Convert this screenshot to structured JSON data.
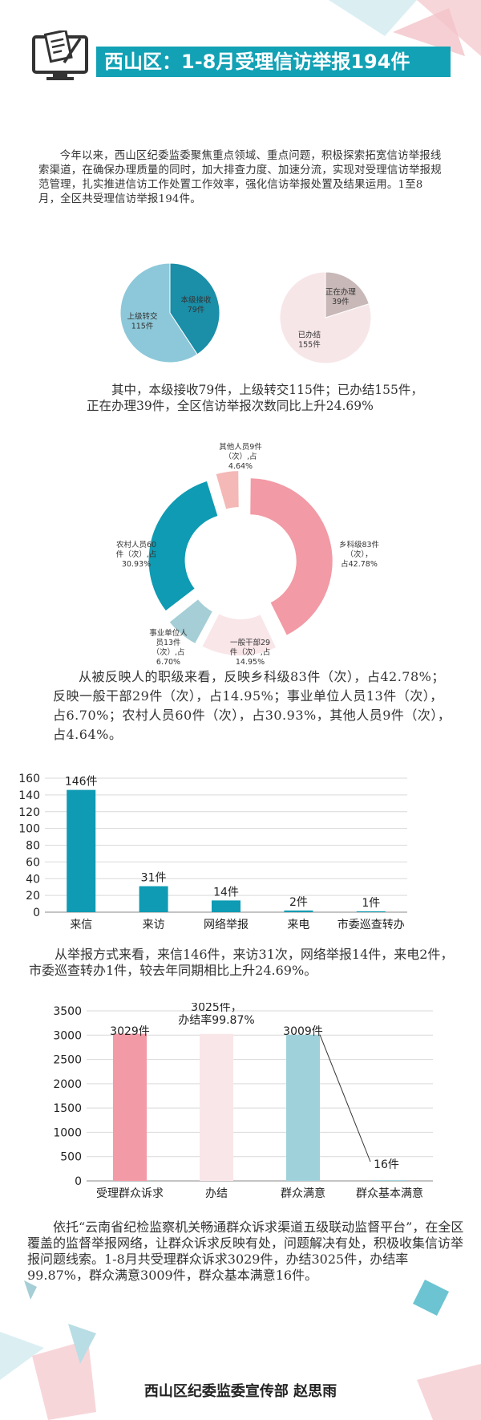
{
  "header": {
    "title": "西山区：1-8月受理信访举报194件",
    "icon": "computer-document-icon",
    "accent": "#12a1b5"
  },
  "paragraphs": {
    "intro": "今年以来，西山区纪委监委聚焦重点领域、重点问题，积极探索拓宽信访举报线索渠道，在确保办理质量的同时，加大排查力度、加速分流，实现对受理信访举报规范管理，扎实推进信访工作处置工作效率，强化信访举报处置及结果运用。1至8月，全区共受理信访举报194件。",
    "pies_summary": "其中，本级接收79件，上级转交115件；已办结155件，正在办理39件，全区信访举报次数同比上升24.69%",
    "level_summary": "从被反映人的职级来看，反映乡科级83件（次），占42.78%；反映一般干部29件（次），占14.95%；事业单位人员13件（次），占6.70%；农村人员60件（次），占30.93%，其他人员9件（次），占4.64%。",
    "method_summary": "从举报方式来看，来信146件，来访31次，网络举报14件，来电2件，市委巡查转办1件，较去年同期相比上升24.69%。",
    "petition_summary": "依托“云南省纪检监察机关畅通群众诉求渠道五级联动监督平台”，在全区覆盖的监督举报网络，让群众诉求反映有处，问题解决有处，积极收集信访举报问题线索。1-8月共受理群众诉求3029件，办结3025件，办结率99.87%，群众满意3009件，群众基本满意16件。"
  },
  "footer": {
    "credit": "西山区纪委监委宣传部  赵思雨"
  },
  "chart_data": [
    {
      "type": "pie",
      "slices": [
        {
          "label": "本级接收",
          "value": 79,
          "text": "79件",
          "color": "#1b8ea8"
        },
        {
          "label": "上级转交",
          "value": 115,
          "text": "115件",
          "color": "#8cc8d9"
        }
      ]
    },
    {
      "type": "pie",
      "slices": [
        {
          "label": "正在办理",
          "value": 39,
          "text": "39件",
          "color": "#c9b8b8"
        },
        {
          "label": "已办结",
          "value": 155,
          "text": "155件",
          "color": "#f7e6e8"
        }
      ]
    },
    {
      "type": "donut",
      "slices": [
        {
          "lines": [
            "乡科级83件",
            "（次），",
            "占42.78%"
          ],
          "value": 83,
          "color": "#f29aa5"
        },
        {
          "lines": [
            "一般干部29",
            "件（次）,占",
            "14.95%"
          ],
          "value": 29,
          "color": "#f9e6e9"
        },
        {
          "lines": [
            "事业单位人",
            "员13件",
            "（次）,占",
            "6.70%"
          ],
          "value": 13,
          "color": "#a5ced6"
        },
        {
          "lines": [
            "农村人员60",
            "件（次）,占",
            "30.93%"
          ],
          "value": 60,
          "color": "#0e9bb3"
        },
        {
          "lines": [
            "其他人员9件",
            "（次）,占",
            "4.64%"
          ],
          "value": 9,
          "color": "#f4b8b6"
        }
      ]
    },
    {
      "type": "bar",
      "categories": [
        "来信",
        "来访",
        "网络举报",
        "来电",
        "市委巡查转办"
      ],
      "values": [
        146,
        31,
        14,
        2,
        1
      ],
      "data_labels": [
        "146件",
        "31件",
        "14件",
        "2件",
        "1件"
      ],
      "ylim": [
        0,
        160
      ],
      "yticks": [
        "0",
        "20",
        "40",
        "60",
        "80",
        "100",
        "120",
        "140",
        "160"
      ],
      "grid": true,
      "color": "#0e9bb3"
    },
    {
      "type": "bar",
      "categories": [
        "受理群众诉求",
        "办结",
        "群众满意",
        "群众基本满意"
      ],
      "values": [
        3029,
        3025,
        3009,
        16
      ],
      "data_labels": [
        "3029件",
        "3025件，\n办结率99.87%",
        "3009件",
        "16件"
      ],
      "colors": [
        "#f29aa5",
        "#f9e6e9",
        "#9fd1db",
        "#9fd1db"
      ],
      "ylim": [
        0,
        3500
      ],
      "yticks": [
        "0",
        "500",
        "1000",
        "1500",
        "2000",
        "2500",
        "3000",
        "3500"
      ],
      "grid": true
    }
  ]
}
